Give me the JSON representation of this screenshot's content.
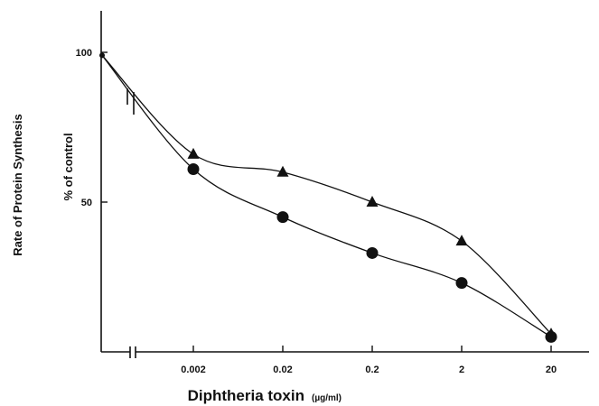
{
  "chart_data": {
    "type": "line",
    "title": "",
    "xlabel": "Diphtheria toxin",
    "xlabel_unit": "(µg/ml)",
    "ylabel": "Rate of Protein Synthesis",
    "ylabel_sub": "% of control",
    "x_scale": "log",
    "x_axis_break": true,
    "grid": false,
    "legend": "none",
    "categories": [
      "0.002",
      "0.02",
      "0.2",
      "2",
      "20"
    ],
    "y_ticks": [
      "100",
      "50"
    ],
    "ylim": [
      0,
      115
    ],
    "control": {
      "x": 0,
      "y": 99
    },
    "series": [
      {
        "marker": "triangle",
        "color": "#111111",
        "values": [
          66,
          60,
          50,
          37,
          6
        ]
      },
      {
        "marker": "circle",
        "color": "#111111",
        "values": [
          61,
          45,
          33,
          23,
          5
        ]
      }
    ]
  }
}
